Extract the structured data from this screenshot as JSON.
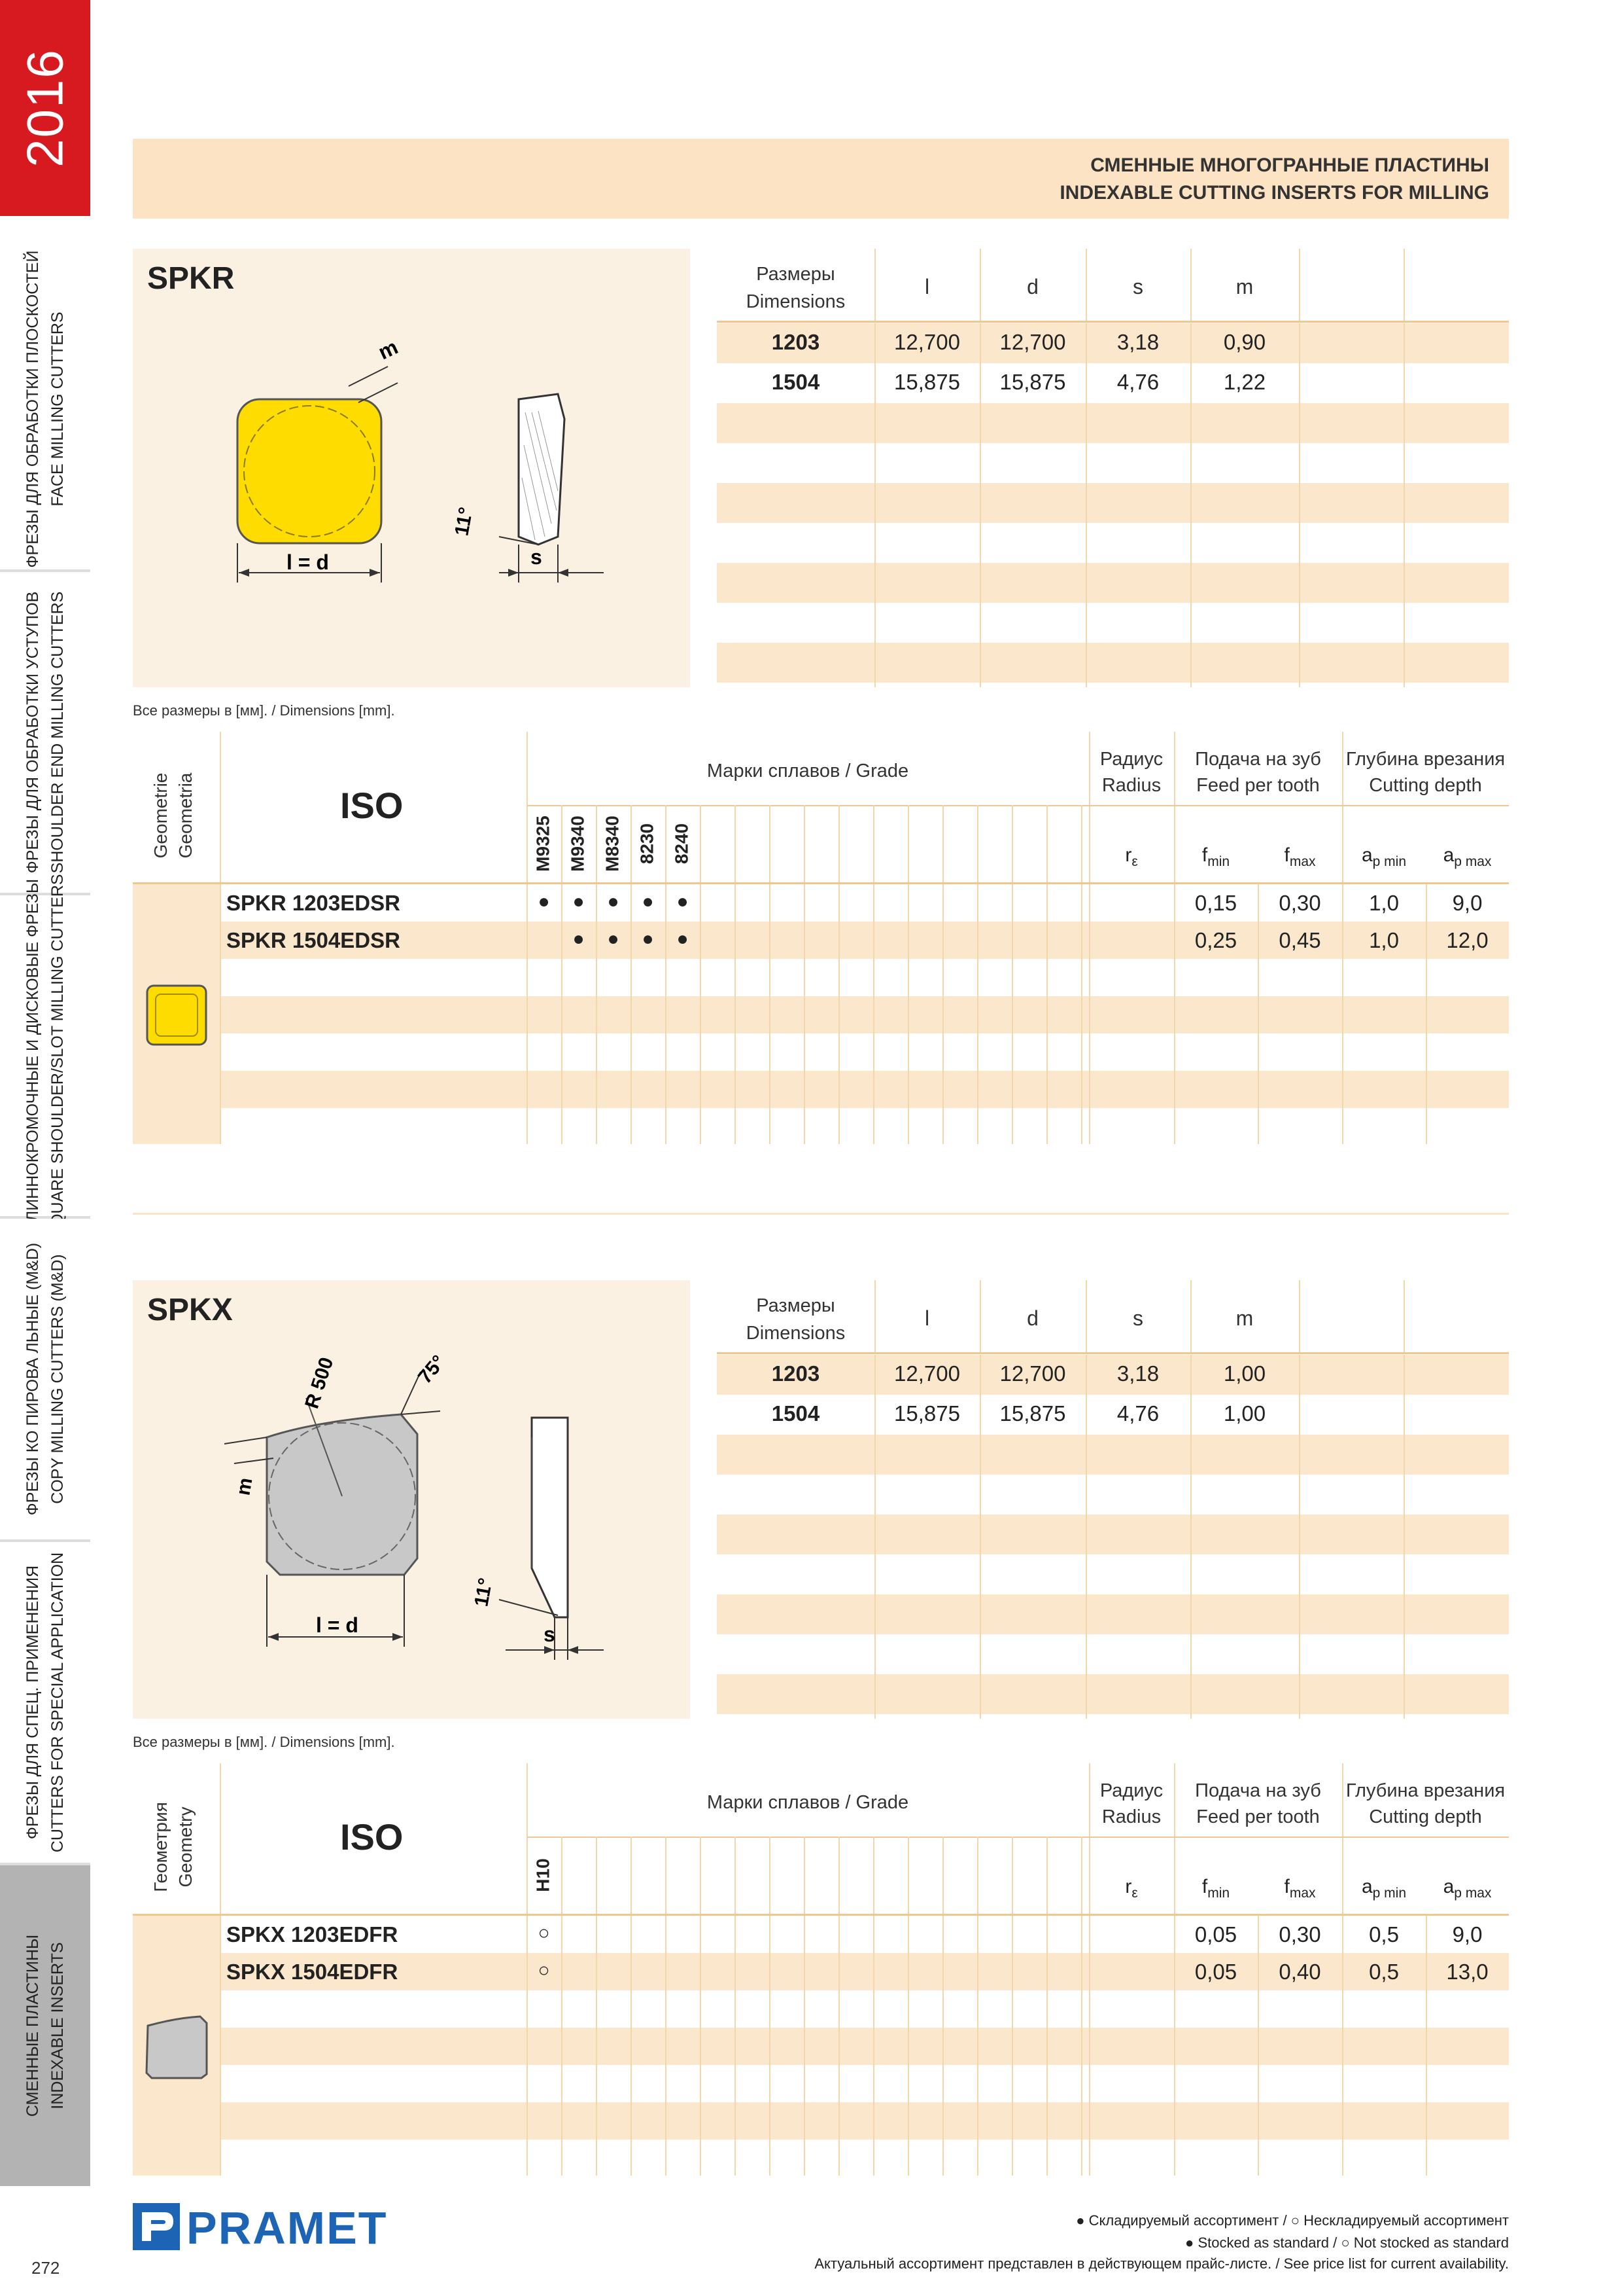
{
  "sidebar": {
    "year": "2016",
    "tabs": [
      {
        "ru": "ФРЕЗЫ ДЛЯ ОБРАБОТКИ ПЛОСКОСТЕЙ",
        "en": "FACE MILLING CUTTERS"
      },
      {
        "ru": "ФРЕЗЫ ДЛЯ ОБРАБОТКИ УСТУПОВ",
        "en": "SHOULDER END MILLING CUTTERS"
      },
      {
        "ru": "ДЛИННОКРОМОЧНЫЕ И ДИСКОВЫЕ ФРЕЗЫ",
        "en": "SQUARE SHOULDER/SLOT MILLING CUTTERS"
      },
      {
        "ru": "ФРЕЗЫ КО ПИРОВА ЛЬНЫЕ (M&D)",
        "en": "COPY MILLING CUTTERS (M&D)"
      },
      {
        "ru": "ФРЕЗЫ ДЛЯ СПЕЦ. ПРИМЕНЕНИЯ",
        "en": "CUTTERS FOR SPECIAL APPLICATION"
      },
      {
        "ru": "СМЕННЫЕ ПЛАСТИНЫ",
        "en": "INDEXABLE INSERTS"
      }
    ]
  },
  "header": {
    "ru": "СМЕННЫЕ МНОГОГРАННЫЕ ПЛАСТИНЫ",
    "en": "INDEXABLE CUTTING INSERTS FOR MILLING"
  },
  "colors": {
    "accent_red": "#d71920",
    "header_bg": "#fbe3c3",
    "insert_yellow": "#ffdc00",
    "insert_grey": "#c8c8c8",
    "pramet_blue": "#1d64b4"
  },
  "sections": [
    {
      "code": "SPKR",
      "drawing_labels": {
        "m": "m",
        "ld": "l = d",
        "angle": "11°",
        "s": "s"
      },
      "dims_note": "Все размеры в [мм]. / Dimensions [mm].",
      "dimension_table": {
        "header_ru": "Размеры",
        "header_en": "Dimensions",
        "cols": [
          "l",
          "d",
          "s",
          "m"
        ],
        "rows": [
          {
            "size": "1203",
            "l": "12,700",
            "d": "12,700",
            "s": "3,18",
            "m": "0,90"
          },
          {
            "size": "1504",
            "l": "15,875",
            "d": "15,875",
            "s": "4,76",
            "m": "1,22"
          }
        ]
      },
      "grade_table": {
        "geometry_label_1": "Geometrie",
        "geometry_label_2": "Geometria",
        "iso": "ISO",
        "grade_title": "Марки сплавов / Grade",
        "radius_ru": "Радиус",
        "radius_en": "Radius",
        "feed_ru": "Подача на зуб",
        "feed_en": "Feed per tooth",
        "depth_ru": "Глубина врезания",
        "depth_en": "Cutting depth",
        "sym_r": "r",
        "sym_r_sub": "ε",
        "sym_f": "f",
        "sym_fmin_sub": "min",
        "sym_fmax_sub": "max",
        "sym_a": "a",
        "sym_apmin_sub": "p min",
        "sym_apmax_sub": "p max",
        "grades": [
          "M9325",
          "M9340",
          "M8340",
          "8230",
          "8240"
        ],
        "rows": [
          {
            "name": "SPKR 1203EDSR",
            "marks": [
              "●",
              "●",
              "●",
              "●",
              "●"
            ],
            "fmin": "0,15",
            "fmax": "0,30",
            "apmin": "1,0",
            "apmax": "9,0"
          },
          {
            "name": "SPKR 1504EDSR",
            "marks": [
              "",
              "●",
              "●",
              "●",
              "●"
            ],
            "fmin": "0,25",
            "fmax": "0,45",
            "apmin": "1,0",
            "apmax": "12,0"
          }
        ]
      }
    },
    {
      "code": "SPKX",
      "drawing_labels": {
        "r": "R 500",
        "angle75": "75°",
        "m": "m",
        "ld": "l = d",
        "angle": "11°",
        "s": "s"
      },
      "dims_note": "Все размеры в [мм]. / Dimensions [mm].",
      "dimension_table": {
        "header_ru": "Размеры",
        "header_en": "Dimensions",
        "cols": [
          "l",
          "d",
          "s",
          "m"
        ],
        "rows": [
          {
            "size": "1203",
            "l": "12,700",
            "d": "12,700",
            "s": "3,18",
            "m": "1,00"
          },
          {
            "size": "1504",
            "l": "15,875",
            "d": "15,875",
            "s": "4,76",
            "m": "1,00"
          }
        ]
      },
      "grade_table": {
        "geometry_label_1": "Геометрия",
        "geometry_label_2": "Geometry",
        "iso": "ISO",
        "grade_title": "Марки сплавов / Grade",
        "radius_ru": "Радиус",
        "radius_en": "Radius",
        "feed_ru": "Подача на зуб",
        "feed_en": "Feed per tooth",
        "depth_ru": "Глубина врезания",
        "depth_en": "Cutting depth",
        "sym_r": "r",
        "sym_r_sub": "ε",
        "sym_f": "f",
        "sym_fmin_sub": "min",
        "sym_fmax_sub": "max",
        "sym_a": "a",
        "sym_apmin_sub": "p min",
        "sym_apmax_sub": "p max",
        "grades": [
          "H10"
        ],
        "rows": [
          {
            "name": "SPKX 1203EDFR",
            "marks": [
              "○"
            ],
            "fmin": "0,05",
            "fmax": "0,30",
            "apmin": "0,5",
            "apmax": "9,0"
          },
          {
            "name": "SPKX 1504EDFR",
            "marks": [
              "○"
            ],
            "fmin": "0,05",
            "fmax": "0,40",
            "apmin": "0,5",
            "apmax": "13,0"
          }
        ]
      }
    }
  ],
  "footer": {
    "logo": "PRAMET",
    "page_number": "272",
    "legend_ru": "● Складируемый ассортимент / ○ Нескладируемый ассортимент",
    "legend_en": "● Stocked as standard / ○ Not stocked as standard",
    "availability": "Актуальный ассортимент представлен в действующем прайс-листе. / See price list for current availability."
  }
}
